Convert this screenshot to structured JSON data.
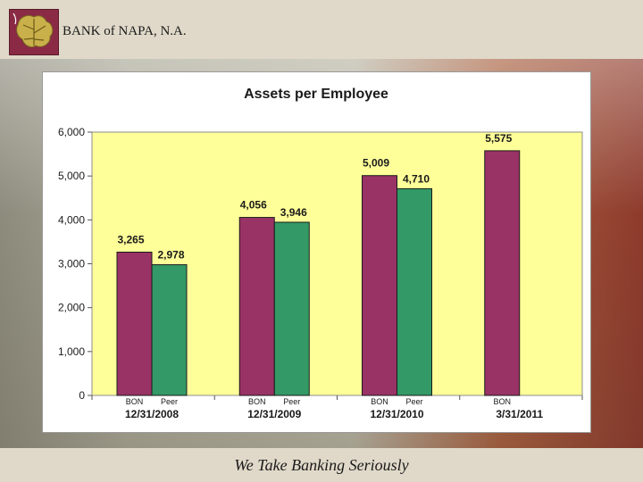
{
  "header": {
    "bank_name": "BANK of NAPA, N.A."
  },
  "footer": {
    "tagline": "We Take Banking Seriously"
  },
  "colors": {
    "bon": "#993366",
    "peer": "#339966",
    "plot_bg": "#ffff99"
  },
  "chart_data": {
    "type": "bar",
    "title": "Assets per Employee",
    "xlabel": "",
    "ylabel": "",
    "ylim": [
      0,
      6000
    ],
    "yticks": [
      "0",
      "1,000",
      "2,000",
      "3,000",
      "4,000",
      "5,000",
      "6,000"
    ],
    "grid": false,
    "legend": "none",
    "groups": [
      {
        "label": "12/31/2008",
        "bars": [
          {
            "series": "BON",
            "value": 3265,
            "label": "3,265"
          },
          {
            "series": "Peer",
            "value": 2978,
            "label": "2,978"
          }
        ]
      },
      {
        "label": "12/31/2009",
        "bars": [
          {
            "series": "BON",
            "value": 4056,
            "label": "4,056"
          },
          {
            "series": "Peer",
            "value": 3946,
            "label": "3,946"
          }
        ]
      },
      {
        "label": "12/31/2010",
        "bars": [
          {
            "series": "BON",
            "value": 5009,
            "label": "5,009"
          },
          {
            "series": "Peer",
            "value": 4710,
            "label": "4,710"
          }
        ]
      },
      {
        "label": "3/31/2011",
        "bars": [
          {
            "series": "BON",
            "value": 5575,
            "label": "5,575"
          }
        ]
      }
    ]
  }
}
